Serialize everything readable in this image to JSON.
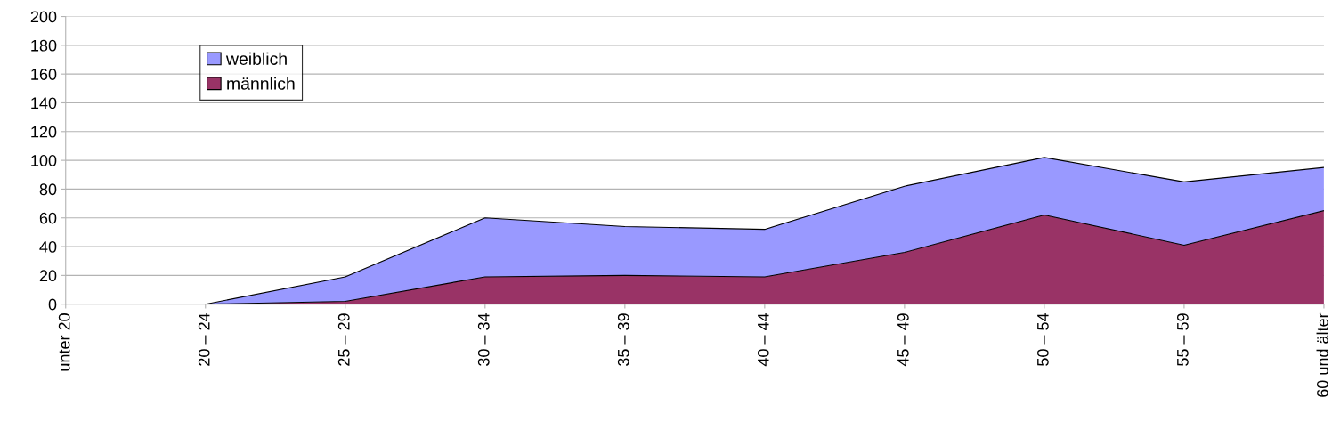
{
  "chart_data": {
    "type": "area",
    "stacked": true,
    "categories": [
      "unter 20",
      "20 – 24",
      "25 – 29",
      "30 – 34",
      "35 – 39",
      "40 – 44",
      "45 – 49",
      "50 – 54",
      "55 – 59",
      "60 und älter"
    ],
    "series": [
      {
        "name": "männlich",
        "color": "#993366",
        "values": [
          0,
          0,
          2,
          19,
          20,
          19,
          36,
          62,
          41,
          65
        ]
      },
      {
        "name": "weiblich",
        "color": "#9999ff",
        "values": [
          0,
          0,
          17,
          41,
          34,
          33,
          46,
          40,
          44,
          30
        ]
      }
    ],
    "ylim": [
      0,
      200
    ],
    "yticks": [
      0,
      20,
      40,
      60,
      80,
      100,
      120,
      140,
      160,
      180,
      200
    ],
    "grid": "y",
    "legend": "top left"
  }
}
